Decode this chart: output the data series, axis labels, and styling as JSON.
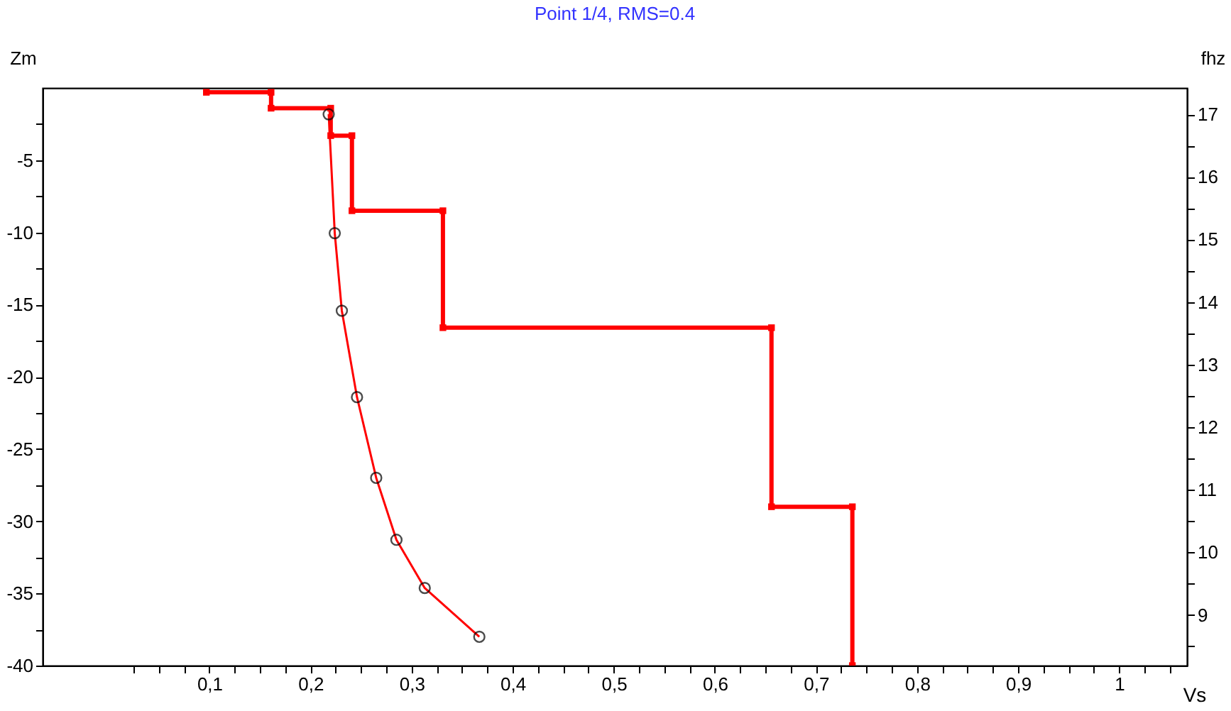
{
  "chart_data": {
    "type": "line",
    "title": "Point 1/4, RMS=0.4",
    "xlabel": "Vs",
    "ylabel": "Zm",
    "y2label": "fhz",
    "grid": false,
    "xlim": [
      -0.065,
      1.067
    ],
    "ylim": [
      -40,
      0
    ],
    "y2lim": [
      8.19,
      17.42
    ],
    "xticks": [
      {
        "value": 0.025,
        "label": null
      },
      {
        "value": 0.05,
        "label": null
      },
      {
        "value": 0.075,
        "label": null
      },
      {
        "value": 0.1,
        "label": "0,1"
      },
      {
        "value": 0.125,
        "label": null
      },
      {
        "value": 0.15,
        "label": null
      },
      {
        "value": 0.175,
        "label": null
      },
      {
        "value": 0.2,
        "label": "0,2"
      },
      {
        "value": 0.225,
        "label": null
      },
      {
        "value": 0.25,
        "label": null
      },
      {
        "value": 0.275,
        "label": null
      },
      {
        "value": 0.3,
        "label": "0,3"
      },
      {
        "value": 0.325,
        "label": null
      },
      {
        "value": 0.35,
        "label": null
      },
      {
        "value": 0.375,
        "label": null
      },
      {
        "value": 0.4,
        "label": "0,4"
      },
      {
        "value": 0.425,
        "label": null
      },
      {
        "value": 0.45,
        "label": null
      },
      {
        "value": 0.475,
        "label": null
      },
      {
        "value": 0.5,
        "label": "0,5"
      },
      {
        "value": 0.525,
        "label": null
      },
      {
        "value": 0.55,
        "label": null
      },
      {
        "value": 0.575,
        "label": null
      },
      {
        "value": 0.6,
        "label": "0,6"
      },
      {
        "value": 0.625,
        "label": null
      },
      {
        "value": 0.65,
        "label": null
      },
      {
        "value": 0.675,
        "label": null
      },
      {
        "value": 0.7,
        "label": "0,7"
      },
      {
        "value": 0.725,
        "label": null
      },
      {
        "value": 0.75,
        "label": null
      },
      {
        "value": 0.775,
        "label": null
      },
      {
        "value": 0.8,
        "label": "0,8"
      },
      {
        "value": 0.825,
        "label": null
      },
      {
        "value": 0.85,
        "label": null
      },
      {
        "value": 0.875,
        "label": null
      },
      {
        "value": 0.9,
        "label": "0,9"
      },
      {
        "value": 0.925,
        "label": null
      },
      {
        "value": 0.95,
        "label": null
      },
      {
        "value": 0.975,
        "label": null
      },
      1,
      {
        "value": 1.025,
        "label": null
      },
      {
        "value": 1.05,
        "label": null
      }
    ],
    "yticks": [
      -40,
      {
        "value": -37.5,
        "label": null
      },
      -35,
      {
        "value": -32.5,
        "label": null
      },
      -30,
      {
        "value": -27.5,
        "label": null
      },
      -25,
      {
        "value": -22.5,
        "label": null
      },
      -20,
      {
        "value": -17.5,
        "label": null
      },
      -15,
      {
        "value": -12.5,
        "label": null
      },
      -10,
      {
        "value": -7.5,
        "label": null
      },
      -5,
      {
        "value": -2.5,
        "label": null
      }
    ],
    "y2ticks": [
      {
        "value": 8.5,
        "label": null
      },
      9,
      {
        "value": 9.5,
        "label": null
      },
      10,
      {
        "value": 10.5,
        "label": null
      },
      11,
      {
        "value": 11.5,
        "label": null
      },
      12,
      {
        "value": 12.5,
        "label": null
      },
      13,
      {
        "value": 13.5,
        "label": null
      },
      14,
      {
        "value": 14.5,
        "label": null
      },
      15,
      {
        "value": 15.5,
        "label": null
      },
      16,
      {
        "value": 16.5,
        "label": null
      },
      17
    ],
    "series": [
      {
        "color": "#ff0000",
        "marker": "square",
        "x": [
          0.097,
          0.161,
          0.161,
          0.22,
          0.22,
          0.241,
          0.241,
          0.331,
          0.331,
          0.656,
          0.656,
          0.736,
          0.736
        ],
        "values": [
          -0.3,
          -0.3,
          -1.4,
          -1.4,
          -3.3,
          -3.3,
          -8.5,
          -8.5,
          -16.6,
          -16.6,
          -29.0,
          -29.0,
          -40
        ]
      },
      {
        "type": "line",
        "axis": "y2",
        "color": "#ff0000",
        "x": [
          0.218,
          0.224,
          0.231,
          0.246,
          0.265,
          0.285,
          0.313,
          0.367
        ],
        "values": [
          17.0,
          15.1,
          13.86,
          12.48,
          11.19,
          10.2,
          9.43,
          8.65
        ]
      },
      {
        "type": "scatter",
        "axis": "y2",
        "color": "#000000",
        "marker": "circle",
        "x": [
          0.218,
          0.224,
          0.231,
          0.246,
          0.265,
          0.285,
          0.313,
          0.367
        ],
        "values": [
          17.0,
          15.1,
          13.86,
          12.48,
          11.19,
          10.2,
          9.43,
          8.65
        ]
      }
    ]
  }
}
